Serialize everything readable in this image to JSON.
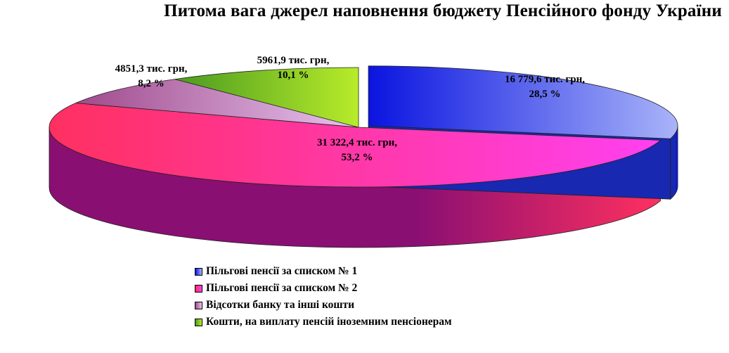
{
  "chart_data": {
    "type": "pie",
    "title": "Питома вага джерел наповнення бюджету Пенсійного фонду України",
    "slices": [
      {
        "name": "Пільгові пенсії за списком № 1",
        "value": 16779.6,
        "value_label": "16 779,6 тис. грн,",
        "percent": 28.5,
        "percent_label": "28,5 %",
        "color": "#6f84f3",
        "color_light": "#a9b4f9",
        "color_dark": "#0a14e0",
        "side_color": "#1828b0"
      },
      {
        "name": "Пільгові пенсії за списком № 2",
        "value": 31322.4,
        "value_label": "31 322,4 тис. грн,",
        "percent": 53.2,
        "percent_label": "53,2 %",
        "color": "#ff00e0",
        "color_light": "#ff40f0",
        "color_dark": "#ff3060",
        "side_color": "#8a0f72"
      },
      {
        "name": "Відсотки банку та інші кошти",
        "value": 4851.3,
        "value_label": "4851,3 тис. грн,",
        "percent": 8.2,
        "percent_label": "8,2 %",
        "color": "#c884d4",
        "color_light": "#e6c4ee",
        "color_dark": "#a04a8c",
        "side_color": "#8a4a86"
      },
      {
        "name": "Кошти, на виплату пенсій іноземним пенсіонерам",
        "value": 5961.9,
        "value_label": "5961,9 тис. грн,",
        "percent": 10.1,
        "percent_label": "10,1 %",
        "color": "#88cc22",
        "color_light": "#b8ec2a",
        "color_dark": "#4a9a20",
        "side_color": "#3f7a1a"
      }
    ],
    "legend_position": "bottom",
    "three_d": true
  }
}
